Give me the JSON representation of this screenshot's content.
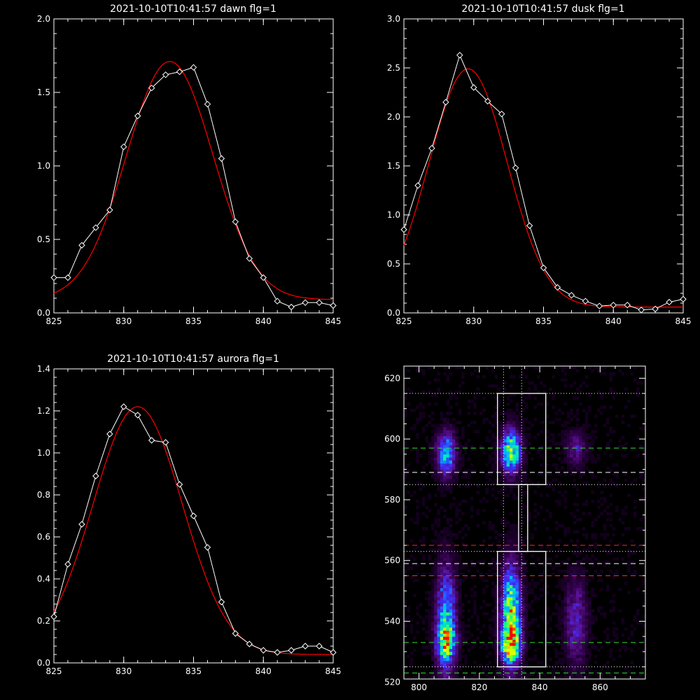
{
  "colors": {
    "background": "#000000",
    "axes": "#ffffff",
    "data_line": "#ffffff",
    "fit_line": "#ff0000",
    "roi_box": "#ffffff",
    "green_dash": "#33dd33",
    "red_dash": "#ff2a2a",
    "white_dash": "#ffffff"
  },
  "chart_data": [
    {
      "type": "line",
      "title": "2021-10-10T10:41:57 dawn flg=1",
      "xlabel": "",
      "ylabel": "",
      "xlim": [
        825,
        845
      ],
      "ylim": [
        0,
        2.0
      ],
      "x_ticks": [
        825,
        830,
        835,
        840,
        845
      ],
      "y_ticks": [
        0.0,
        0.5,
        1.0,
        1.5,
        2.0
      ],
      "x_tick_labels": [
        "825",
        "830",
        "835",
        "840",
        "845"
      ],
      "y_tick_labels": [
        "0.0",
        "0.5",
        "1.0",
        "1.5",
        "2.0"
      ],
      "series": [
        {
          "style": "data",
          "marker": "diamond",
          "x": [
            825,
            826,
            827,
            828,
            829,
            830,
            831,
            832,
            833,
            834,
            835,
            836,
            837,
            838,
            839,
            840,
            841,
            842,
            843,
            844,
            845
          ],
          "y": [
            0.24,
            0.24,
            0.46,
            0.58,
            0.7,
            1.13,
            1.34,
            1.53,
            1.62,
            1.64,
            1.67,
            1.42,
            1.05,
            0.62,
            0.37,
            0.24,
            0.08,
            0.04,
            0.07,
            0.07,
            0.05
          ]
        },
        {
          "style": "fit",
          "gaussian": {
            "amp": 1.62,
            "center": 833.3,
            "sigma": 3.1,
            "offset": 0.09
          }
        }
      ]
    },
    {
      "type": "line",
      "title": "2021-10-10T10:41:57 dusk flg=1",
      "xlabel": "",
      "ylabel": "",
      "xlim": [
        825,
        845
      ],
      "ylim": [
        0,
        3.0
      ],
      "x_ticks": [
        825,
        830,
        835,
        840,
        845
      ],
      "y_ticks": [
        0.0,
        0.5,
        1.0,
        1.5,
        2.0,
        2.5,
        3.0
      ],
      "x_tick_labels": [
        "825",
        "830",
        "835",
        "840",
        "845"
      ],
      "y_tick_labels": [
        "0.0",
        "0.5",
        "1.0",
        "1.5",
        "2.0",
        "2.5",
        "3.0"
      ],
      "series": [
        {
          "style": "data",
          "marker": "diamond",
          "x": [
            825,
            826,
            827,
            828,
            829,
            830,
            831,
            832,
            833,
            834,
            835,
            836,
            837,
            838,
            839,
            840,
            841,
            842,
            843,
            844,
            845
          ],
          "y": [
            0.85,
            1.3,
            1.68,
            2.15,
            2.63,
            2.3,
            2.16,
            2.03,
            1.48,
            0.89,
            0.46,
            0.26,
            0.18,
            0.12,
            0.07,
            0.08,
            0.08,
            0.03,
            0.04,
            0.11,
            0.14
          ]
        },
        {
          "style": "fit",
          "gaussian": {
            "amp": 2.43,
            "center": 829.6,
            "sigma": 2.8,
            "offset": 0.06
          }
        }
      ]
    },
    {
      "type": "line",
      "title": "2021-10-10T10:41:57 aurora flg=1",
      "xlabel": "",
      "ylabel": "",
      "xlim": [
        825,
        845
      ],
      "ylim": [
        0,
        1.4
      ],
      "x_ticks": [
        825,
        830,
        835,
        840,
        845
      ],
      "y_ticks": [
        0.0,
        0.2,
        0.4,
        0.6,
        0.8,
        1.0,
        1.2,
        1.4
      ],
      "x_tick_labels": [
        "825",
        "830",
        "835",
        "840",
        "845"
      ],
      "y_tick_labels": [
        "0.0",
        "0.2",
        "0.4",
        "0.6",
        "0.8",
        "1.0",
        "1.2",
        "1.4"
      ],
      "series": [
        {
          "style": "data",
          "marker": "diamond",
          "x": [
            825,
            826,
            827,
            828,
            829,
            830,
            831,
            832,
            833,
            834,
            835,
            836,
            837,
            838,
            839,
            840,
            841,
            842,
            843,
            844,
            845
          ],
          "y": [
            0.22,
            0.47,
            0.66,
            0.89,
            1.09,
            1.22,
            1.18,
            1.06,
            1.05,
            0.85,
            0.7,
            0.55,
            0.29,
            0.14,
            0.09,
            0.06,
            0.05,
            0.06,
            0.08,
            0.08,
            0.05
          ]
        },
        {
          "style": "fit",
          "gaussian": {
            "amp": 1.18,
            "center": 831.0,
            "sigma": 3.2,
            "offset": 0.04
          }
        }
      ]
    },
    {
      "type": "heatmap",
      "title": "",
      "xlabel": "",
      "ylabel": "",
      "xlim": [
        795,
        875
      ],
      "ylim": [
        521,
        624
      ],
      "x_ticks": [
        800,
        820,
        840,
        860
      ],
      "y_ticks": [
        520,
        540,
        560,
        580,
        600,
        620
      ],
      "x_tick_labels": [
        "800",
        "820",
        "840",
        "860"
      ],
      "y_tick_labels": [
        "520",
        "540",
        "560",
        "580",
        "600",
        "620"
      ],
      "colormap": [
        "#000000",
        "#2a0040",
        "#5a1090",
        "#3a30ff",
        "#00b0ff",
        "#00ffa0",
        "#a0ff00",
        "#ffff00",
        "#ff0000"
      ],
      "emission_bands": [
        {
          "x_center": 809,
          "x_sigma": 2.2,
          "regions": [
            {
              "y_center": 595,
              "y_sigma": 5,
              "intensity": 0.5
            },
            {
              "y_center": 540,
              "y_sigma": 12,
              "intensity": 0.55
            },
            {
              "y_center": 533,
              "y_sigma": 3.5,
              "intensity": 0.4
            }
          ]
        },
        {
          "x_center": 830.5,
          "x_sigma": 2.2,
          "regions": [
            {
              "y_center": 596,
              "y_sigma": 5,
              "intensity": 0.68
            },
            {
              "y_center": 542,
              "y_sigma": 11,
              "intensity": 0.75
            },
            {
              "y_center": 532,
              "y_sigma": 3.5,
              "intensity": 0.55
            }
          ]
        },
        {
          "x_center": 852,
          "x_sigma": 2.5,
          "regions": [
            {
              "y_center": 597,
              "y_sigma": 4,
              "intensity": 0.22
            },
            {
              "y_center": 540,
              "y_sigma": 10,
              "intensity": 0.28
            }
          ]
        }
      ],
      "boxes": [
        {
          "x": [
            826,
            842
          ],
          "y": [
            585,
            615
          ]
        },
        {
          "x": [
            826,
            842
          ],
          "y": [
            525,
            563
          ]
        },
        {
          "x": [
            833,
            836
          ],
          "y": [
            563,
            585
          ]
        }
      ],
      "dotted_vertical_lines_x": [
        828,
        834
      ],
      "dotted_horizontal_lines_y": [
        615,
        585,
        563,
        525
      ],
      "green_dashed_lines_y": [
        597,
        533,
        523
      ],
      "red_dashed_lines_y": [
        565,
        555
      ],
      "white_dashed_lines_y": [
        589,
        559
      ]
    }
  ]
}
